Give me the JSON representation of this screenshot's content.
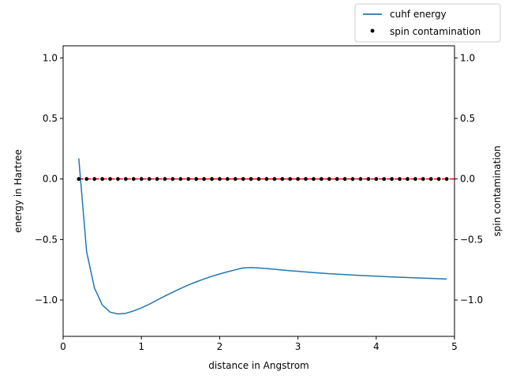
{
  "chart_data": {
    "type": "line",
    "title": "",
    "xlabel": "distance in Angstrom",
    "ylabel": "energy in Hartree",
    "y2label": "spin contamination",
    "xlim": [
      0,
      5
    ],
    "ylim": [
      -1.3,
      1.1
    ],
    "y2lim": [
      -1.3,
      1.1
    ],
    "grid": false,
    "legend_position": "top-right (outside axes)",
    "x_ticks": [
      "0",
      "1",
      "2",
      "3",
      "4",
      "5"
    ],
    "y_ticks": [
      "−1.0",
      "−0.5",
      "0.0",
      "0.5",
      "1.0"
    ],
    "y2_ticks": [
      "−1.0",
      "−0.5",
      "0.0",
      "0.5",
      "1.0"
    ],
    "series": [
      {
        "name": "cuhf energy",
        "axis": "left",
        "style": "line",
        "color": "#1f77b4",
        "x": [
          0.2,
          0.3,
          0.4,
          0.5,
          0.6,
          0.7,
          0.8,
          0.9,
          1.0,
          1.1,
          1.2,
          1.3,
          1.4,
          1.5,
          1.6,
          1.7,
          1.8,
          1.9,
          2.0,
          2.1,
          2.2,
          2.3,
          2.4,
          2.5,
          2.6,
          2.7,
          2.8,
          2.9,
          3.0,
          3.2,
          3.4,
          3.6,
          3.8,
          4.0,
          4.2,
          4.4,
          4.6,
          4.8,
          4.9
        ],
        "y": [
          0.17,
          -0.6,
          -0.9,
          -1.04,
          -1.1,
          -1.115,
          -1.11,
          -1.09,
          -1.065,
          -1.035,
          -1.0,
          -0.967,
          -0.935,
          -0.905,
          -0.876,
          -0.85,
          -0.826,
          -0.804,
          -0.785,
          -0.767,
          -0.75,
          -0.735,
          -0.732,
          -0.735,
          -0.74,
          -0.746,
          -0.752,
          -0.758,
          -0.763,
          -0.773,
          -0.782,
          -0.79,
          -0.797,
          -0.803,
          -0.809,
          -0.814,
          -0.819,
          -0.824,
          -0.826
        ]
      },
      {
        "name": "spin contamination",
        "axis": "right",
        "style": "scatter",
        "color": "#000000",
        "x": [
          0.2,
          0.3,
          0.4,
          0.5,
          0.6,
          0.7,
          0.8,
          0.9,
          1.0,
          1.1,
          1.2,
          1.3,
          1.4,
          1.5,
          1.6,
          1.7,
          1.8,
          1.9,
          2.0,
          2.1,
          2.2,
          2.3,
          2.4,
          2.5,
          2.6,
          2.7,
          2.8,
          2.9,
          3.0,
          3.1,
          3.2,
          3.3,
          3.4,
          3.5,
          3.6,
          3.7,
          3.8,
          3.9,
          4.0,
          4.1,
          4.2,
          4.3,
          4.4,
          4.5,
          4.6,
          4.7,
          4.8,
          4.9
        ],
        "y": [
          0,
          0,
          0,
          0,
          0,
          0,
          0,
          0,
          0,
          0,
          0,
          0,
          0,
          0,
          0,
          0,
          0,
          0,
          0,
          0,
          0,
          0,
          0,
          0,
          0,
          0,
          0,
          0,
          0,
          0,
          0,
          0,
          0,
          0,
          0,
          0,
          0,
          0,
          0,
          0,
          0,
          0,
          0,
          0,
          0,
          0,
          0,
          0
        ]
      }
    ],
    "reference_line": {
      "y": 0,
      "color": "#ff0000",
      "style": "dashed"
    }
  }
}
